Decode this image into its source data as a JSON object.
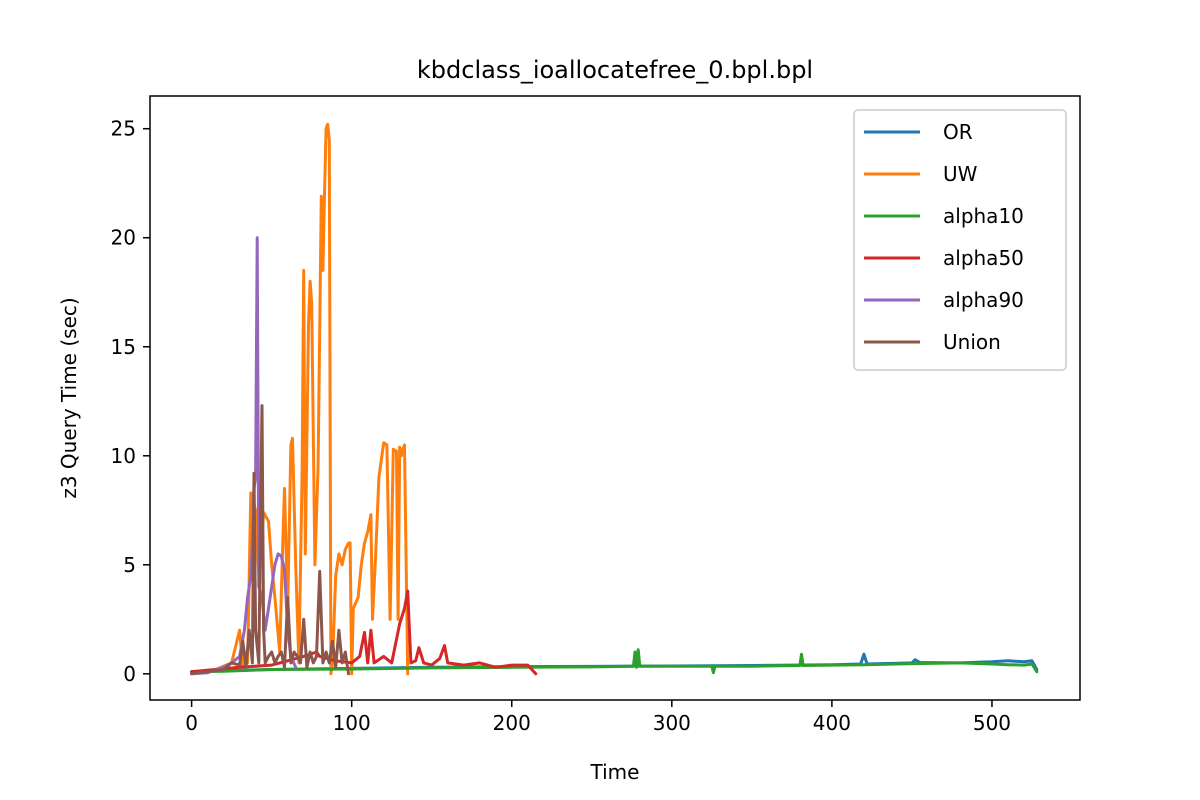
{
  "chart_data": {
    "type": "line",
    "title": "kbdclass_ioallocatefree_0.bpl.bpl",
    "xlabel": "Time",
    "ylabel": "z3 Query Time (sec)",
    "xlim": [
      -26,
      555
    ],
    "ylim": [
      -1.2,
      26.5
    ],
    "xticks": [
      0,
      100,
      200,
      300,
      400,
      500
    ],
    "yticks": [
      0,
      5,
      10,
      15,
      20,
      25
    ],
    "grid": false,
    "legend_position": "top-right",
    "series": [
      {
        "name": "OR",
        "color": "#1f77b4",
        "points": [
          [
            0,
            0.1
          ],
          [
            20,
            0.15
          ],
          [
            50,
            0.2
          ],
          [
            100,
            0.25
          ],
          [
            150,
            0.3
          ],
          [
            200,
            0.33
          ],
          [
            250,
            0.34
          ],
          [
            300,
            0.36
          ],
          [
            350,
            0.38
          ],
          [
            400,
            0.42
          ],
          [
            418,
            0.45
          ],
          [
            420,
            0.9
          ],
          [
            422,
            0.45
          ],
          [
            450,
            0.5
          ],
          [
            452,
            0.65
          ],
          [
            455,
            0.52
          ],
          [
            480,
            0.5
          ],
          [
            500,
            0.55
          ],
          [
            510,
            0.6
          ],
          [
            520,
            0.55
          ],
          [
            525,
            0.6
          ],
          [
            528,
            0.2
          ]
        ]
      },
      {
        "name": "UW",
        "color": "#ff7f0e",
        "points": [
          [
            0,
            0.1
          ],
          [
            15,
            0.2
          ],
          [
            25,
            0.5
          ],
          [
            30,
            2.0
          ],
          [
            32,
            0.3
          ],
          [
            35,
            0.5
          ],
          [
            37,
            8.3
          ],
          [
            40,
            7.5
          ],
          [
            42,
            4.5
          ],
          [
            45,
            7.4
          ],
          [
            48,
            7.0
          ],
          [
            50,
            5.0
          ],
          [
            52,
            3.5
          ],
          [
            55,
            1.0
          ],
          [
            57,
            6.2
          ],
          [
            58,
            8.5
          ],
          [
            60,
            3.0
          ],
          [
            62,
            10.5
          ],
          [
            63,
            10.8
          ],
          [
            65,
            5.0
          ],
          [
            67,
            0.5
          ],
          [
            69,
            9.2
          ],
          [
            70,
            18.5
          ],
          [
            71,
            5.5
          ],
          [
            73,
            16.0
          ],
          [
            74,
            18.0
          ],
          [
            75,
            17.0
          ],
          [
            77,
            5.0
          ],
          [
            79,
            9.5
          ],
          [
            81,
            21.9
          ],
          [
            82,
            18.5
          ],
          [
            83,
            22.0
          ],
          [
            84,
            25.0
          ],
          [
            85,
            25.2
          ],
          [
            86,
            24.5
          ],
          [
            87,
            0.0
          ],
          [
            88,
            0.5
          ],
          [
            90,
            4.5
          ],
          [
            92,
            5.5
          ],
          [
            94,
            5.0
          ],
          [
            96,
            5.7
          ],
          [
            98,
            6.0
          ],
          [
            99,
            6.0
          ],
          [
            100,
            0.0
          ],
          [
            101,
            3.0
          ],
          [
            104,
            3.5
          ],
          [
            106,
            5.0
          ],
          [
            108,
            6.0
          ],
          [
            110,
            6.5
          ],
          [
            112,
            7.3
          ],
          [
            113,
            2.5
          ],
          [
            115,
            5.5
          ],
          [
            117,
            9.0
          ],
          [
            120,
            10.6
          ],
          [
            122,
            10.5
          ],
          [
            124,
            2.5
          ],
          [
            126,
            10.3
          ],
          [
            128,
            10.2
          ],
          [
            129,
            2.5
          ],
          [
            130,
            10.4
          ],
          [
            131,
            10.0
          ],
          [
            132,
            10.3
          ],
          [
            133,
            10.5
          ],
          [
            135,
            0.0
          ]
        ]
      },
      {
        "name": "alpha10",
        "color": "#2ca02c",
        "points": [
          [
            0,
            0.1
          ],
          [
            20,
            0.12
          ],
          [
            50,
            0.2
          ],
          [
            100,
            0.22
          ],
          [
            150,
            0.27
          ],
          [
            200,
            0.3
          ],
          [
            250,
            0.32
          ],
          [
            276,
            0.35
          ],
          [
            277,
            1.0
          ],
          [
            278,
            0.3
          ],
          [
            279,
            1.1
          ],
          [
            280,
            0.35
          ],
          [
            300,
            0.35
          ],
          [
            325,
            0.35
          ],
          [
            326,
            0.05
          ],
          [
            327,
            0.35
          ],
          [
            350,
            0.35
          ],
          [
            380,
            0.38
          ],
          [
            381,
            0.9
          ],
          [
            382,
            0.38
          ],
          [
            400,
            0.4
          ],
          [
            420,
            0.42
          ],
          [
            440,
            0.45
          ],
          [
            460,
            0.48
          ],
          [
            480,
            0.5
          ],
          [
            500,
            0.45
          ],
          [
            510,
            0.42
          ],
          [
            520,
            0.4
          ],
          [
            525,
            0.45
          ],
          [
            528,
            0.1
          ]
        ]
      },
      {
        "name": "alpha50",
        "color": "#d62728",
        "points": [
          [
            0,
            0.1
          ],
          [
            30,
            0.3
          ],
          [
            50,
            0.4
          ],
          [
            60,
            0.6
          ],
          [
            70,
            0.8
          ],
          [
            78,
            1.0
          ],
          [
            80,
            0.8
          ],
          [
            90,
            0.6
          ],
          [
            100,
            0.5
          ],
          [
            105,
            0.8
          ],
          [
            108,
            1.9
          ],
          [
            110,
            0.5
          ],
          [
            112,
            2.0
          ],
          [
            114,
            0.5
          ],
          [
            120,
            0.8
          ],
          [
            125,
            0.5
          ],
          [
            130,
            2.3
          ],
          [
            133,
            3.0
          ],
          [
            135,
            3.8
          ],
          [
            137,
            0.5
          ],
          [
            140,
            0.6
          ],
          [
            142,
            1.2
          ],
          [
            145,
            0.5
          ],
          [
            150,
            0.4
          ],
          [
            155,
            0.7
          ],
          [
            158,
            1.3
          ],
          [
            160,
            0.5
          ],
          [
            170,
            0.4
          ],
          [
            180,
            0.5
          ],
          [
            190,
            0.3
          ],
          [
            200,
            0.4
          ],
          [
            210,
            0.4
          ],
          [
            215,
            0.0
          ]
        ]
      },
      {
        "name": "alpha90",
        "color": "#9467bd",
        "points": [
          [
            0,
            0.0
          ],
          [
            10,
            0.05
          ],
          [
            20,
            0.3
          ],
          [
            25,
            0.5
          ],
          [
            30,
            0.8
          ],
          [
            33,
            2.0
          ],
          [
            35,
            3.5
          ],
          [
            37,
            4.5
          ],
          [
            38,
            6.0
          ],
          [
            39,
            8.5
          ],
          [
            40,
            9.0
          ],
          [
            41,
            20.0
          ],
          [
            42,
            4.0
          ],
          [
            44,
            3.5
          ],
          [
            46,
            2.0
          ],
          [
            48,
            3.0
          ],
          [
            50,
            4.0
          ],
          [
            52,
            5.0
          ],
          [
            54,
            5.5
          ],
          [
            56,
            5.4
          ],
          [
            58,
            4.8
          ],
          [
            60,
            2.0
          ],
          [
            62,
            0.8
          ],
          [
            65,
            0.3
          ]
        ]
      },
      {
        "name": "Union",
        "color": "#8c564b",
        "points": [
          [
            0,
            0.0
          ],
          [
            20,
            0.2
          ],
          [
            25,
            0.5
          ],
          [
            30,
            0.4
          ],
          [
            32,
            1.5
          ],
          [
            34,
            0.3
          ],
          [
            36,
            2.0
          ],
          [
            38,
            0.5
          ],
          [
            39,
            9.2
          ],
          [
            40,
            2.0
          ],
          [
            42,
            0.5
          ],
          [
            44,
            12.3
          ],
          [
            45,
            2.0
          ],
          [
            46,
            0.5
          ],
          [
            48,
            0.8
          ],
          [
            50,
            1.0
          ],
          [
            52,
            0.5
          ],
          [
            54,
            0.8
          ],
          [
            56,
            1.0
          ],
          [
            58,
            0.3
          ],
          [
            60,
            3.5
          ],
          [
            62,
            0.5
          ],
          [
            64,
            1.0
          ],
          [
            66,
            0.8
          ],
          [
            68,
            0.5
          ],
          [
            70,
            2.5
          ],
          [
            72,
            0.3
          ],
          [
            74,
            1.0
          ],
          [
            76,
            0.5
          ],
          [
            78,
            0.8
          ],
          [
            80,
            4.7
          ],
          [
            82,
            0.5
          ],
          [
            84,
            1.0
          ],
          [
            86,
            0.5
          ],
          [
            88,
            1.5
          ],
          [
            90,
            0.3
          ],
          [
            92,
            2.0
          ],
          [
            94,
            0.5
          ],
          [
            96,
            1.0
          ],
          [
            98,
            0.0
          ]
        ]
      }
    ]
  }
}
